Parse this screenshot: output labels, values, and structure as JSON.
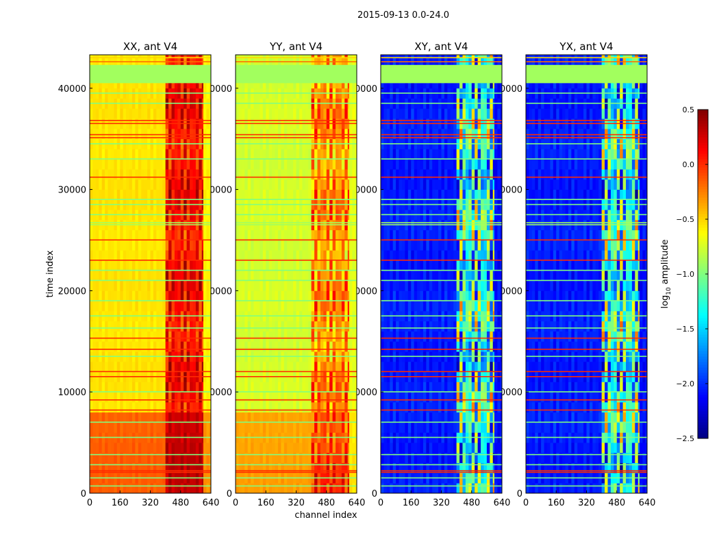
{
  "chart_data": {
    "type": "heatmap",
    "title": "2015-09-13 0.0-24.0",
    "xlabel": "channel index",
    "ylabel": "time index",
    "xlim": [
      0,
      640
    ],
    "ylim": [
      0,
      43300
    ],
    "x_ticks": [
      "0",
      "160",
      "320",
      "480",
      "640"
    ],
    "x_tick_values": [
      0,
      160,
      320,
      480,
      640
    ],
    "y_ticks": [
      "0",
      "10000",
      "20000",
      "30000",
      "40000"
    ],
    "y_tick_values": [
      0,
      10000,
      20000,
      30000,
      40000
    ],
    "colorbar": {
      "label": "log10 amplitude",
      "label_main": "log",
      "label_sub": "10",
      "label_rest": " amplitude",
      "range": [
        -2.5,
        0.5
      ],
      "colormap": "jet",
      "ticks": [
        "0.5",
        "0.0",
        "−0.5",
        "−1.0",
        "−1.5",
        "−2.0",
        "−2.5"
      ],
      "tick_values": [
        0.5,
        0.0,
        -0.5,
        -1.0,
        -1.5,
        -2.0,
        -2.5
      ]
    },
    "flag_value": -0.9,
    "flag_bands": [
      [
        40500,
        42300
      ]
    ],
    "lines": [
      {
        "time": 700,
        "value": -1.0
      },
      {
        "time": 1500,
        "value": -1.0
      },
      {
        "time": 2050,
        "value": 0.0
      },
      {
        "time": 2200,
        "value": 0.0
      },
      {
        "time": 2800,
        "value": -1.0
      },
      {
        "time": 3800,
        "value": -1.0
      },
      {
        "time": 5500,
        "value": -1.0
      },
      {
        "time": 7000,
        "value": -1.0
      },
      {
        "time": 8200,
        "value": 0.0
      },
      {
        "time": 9200,
        "value": 0.0
      },
      {
        "time": 10000,
        "value": -1.0
      },
      {
        "time": 11500,
        "value": 0.0
      },
      {
        "time": 12000,
        "value": 0.0
      },
      {
        "time": 13500,
        "value": -1.0
      },
      {
        "time": 14200,
        "value": 0.0
      },
      {
        "time": 15300,
        "value": 0.0
      },
      {
        "time": 16300,
        "value": -1.0
      },
      {
        "time": 17500,
        "value": -1.0
      },
      {
        "time": 19000,
        "value": -1.0
      },
      {
        "time": 21000,
        "value": -1.0
      },
      {
        "time": 22000,
        "value": -1.0
      },
      {
        "time": 23000,
        "value": 0.0
      },
      {
        "time": 25000,
        "value": 0.0
      },
      {
        "time": 26500,
        "value": -0.9
      },
      {
        "time": 26700,
        "value": -0.9
      },
      {
        "time": 27500,
        "value": -1.0
      },
      {
        "time": 28500,
        "value": -1.0
      },
      {
        "time": 29000,
        "value": -1.0
      },
      {
        "time": 31200,
        "value": 0.0
      },
      {
        "time": 33000,
        "value": -1.0
      },
      {
        "time": 34500,
        "value": -1.0
      },
      {
        "time": 35100,
        "value": 0.0
      },
      {
        "time": 35400,
        "value": 0.0
      },
      {
        "time": 36500,
        "value": 0.0
      },
      {
        "time": 36800,
        "value": 0.0
      },
      {
        "time": 38500,
        "value": -1.0
      },
      {
        "time": 39500,
        "value": -1.0
      },
      {
        "time": 42600,
        "value": -0.2
      },
      {
        "time": 43000,
        "value": -0.5
      }
    ],
    "panels": [
      {
        "title": "XX, ant V4",
        "regions": [
          {
            "channels": [
              0,
              400
            ],
            "time": [
              0,
              8000
            ],
            "value": -0.15,
            "variation": 0.05
          },
          {
            "channels": [
              400,
              600
            ],
            "time": [
              0,
              8000
            ],
            "value": 0.3,
            "variation": 0.1
          },
          {
            "channels": [
              600,
              640
            ],
            "time": [
              0,
              8000
            ],
            "value": -0.3,
            "variation": 0.05
          },
          {
            "channels": [
              0,
              400
            ],
            "time": [
              8000,
              43300
            ],
            "value": -0.55,
            "variation": 0.05
          },
          {
            "channels": [
              400,
              600
            ],
            "time": [
              8000,
              43300
            ],
            "value": 0.1,
            "variation": 0.3
          },
          {
            "channels": [
              600,
              640
            ],
            "time": [
              8000,
              43300
            ],
            "value": -0.6,
            "variation": 0.05
          }
        ]
      },
      {
        "title": "YY, ant V4",
        "regions": [
          {
            "channels": [
              0,
              400
            ],
            "time": [
              0,
              8000
            ],
            "value": -0.35,
            "variation": 0.05
          },
          {
            "channels": [
              400,
              600
            ],
            "time": [
              0,
              8000
            ],
            "value": -0.05,
            "variation": 0.3
          },
          {
            "channels": [
              600,
              640
            ],
            "time": [
              0,
              8000
            ],
            "value": -0.55,
            "variation": 0.05
          },
          {
            "channels": [
              0,
              400
            ],
            "time": [
              8000,
              43300
            ],
            "value": -0.75,
            "variation": 0.06
          },
          {
            "channels": [
              400,
              600
            ],
            "time": [
              8000,
              43300
            ],
            "value": -0.3,
            "variation": 0.4
          },
          {
            "channels": [
              600,
              640
            ],
            "time": [
              8000,
              43300
            ],
            "value": -0.7,
            "variation": 0.05
          }
        ]
      },
      {
        "title": "XY, ant V4",
        "regions": [
          {
            "channels": [
              0,
              400
            ],
            "time": [
              0,
              43300
            ],
            "value": -2.05,
            "variation": 0.12
          },
          {
            "channels": [
              400,
              600
            ],
            "time": [
              0,
              43300
            ],
            "value": -1.3,
            "variation": 0.9
          },
          {
            "channels": [
              600,
              640
            ],
            "time": [
              0,
              43300
            ],
            "value": -2.1,
            "variation": 0.1
          }
        ]
      },
      {
        "title": "YX, ant V4",
        "regions": [
          {
            "channels": [
              0,
              400
            ],
            "time": [
              0,
              43300
            ],
            "value": -2.05,
            "variation": 0.12
          },
          {
            "channels": [
              400,
              600
            ],
            "time": [
              0,
              43300
            ],
            "value": -1.3,
            "variation": 0.9
          },
          {
            "channels": [
              600,
              640
            ],
            "time": [
              0,
              43300
            ],
            "value": -2.1,
            "variation": 0.1
          }
        ]
      }
    ]
  }
}
